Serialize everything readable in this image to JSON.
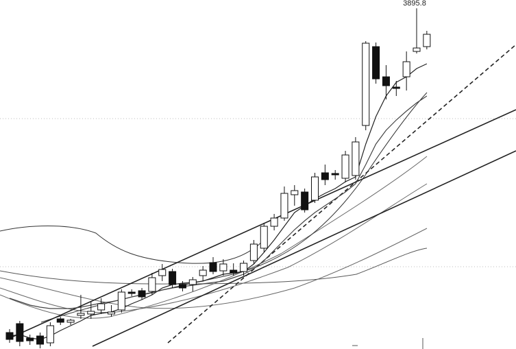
{
  "chart_data": {
    "type": "candlestick",
    "open": [
      2477,
      2516,
      2453,
      2462,
      2432,
      2537,
      2522,
      2552,
      2558,
      2576,
      2558,
      2576,
      2654,
      2660,
      2657,
      2726,
      2744,
      2687,
      2687,
      2726,
      2783,
      2747,
      2750,
      2744,
      2792,
      2846,
      2942,
      2978,
      3080,
      3092,
      3056,
      3176,
      3173,
      3152,
      3164,
      3383,
      3728,
      3596,
      3551,
      3596,
      3707,
      3728
    ],
    "high": [
      2492,
      2528,
      2468,
      2477,
      2522,
      2546,
      2537,
      2642,
      2612,
      2627,
      2597,
      2666,
      2666,
      2672,
      2738,
      2777,
      2756,
      2702,
      2720,
      2768,
      2807,
      2798,
      2780,
      2792,
      2882,
      2957,
      2996,
      3116,
      3122,
      3107,
      3176,
      3212,
      3188,
      3272,
      3332,
      3752,
      3746,
      3647,
      3578,
      3707,
      3895.8,
      3797
    ],
    "low": [
      2432,
      2417,
      2423,
      2408,
      2417,
      2510,
      2510,
      2537,
      2537,
      2558,
      2546,
      2564,
      2636,
      2621,
      2642,
      2702,
      2672,
      2657,
      2657,
      2702,
      2732,
      2726,
      2726,
      2726,
      2777,
      2828,
      2924,
      2966,
      3032,
      3002,
      3044,
      3122,
      3146,
      3134,
      3146,
      3362,
      3566,
      3497,
      3512,
      3536,
      3698,
      3716
    ],
    "close": [
      2447,
      2438,
      2441,
      2426,
      2507,
      2522,
      2531,
      2561,
      2570,
      2603,
      2567,
      2654,
      2648,
      2633,
      2717,
      2753,
      2687,
      2672,
      2708,
      2750,
      2744,
      2777,
      2738,
      2780,
      2864,
      2942,
      2978,
      3086,
      3098,
      3014,
      3158,
      3146,
      3167,
      3254,
      3311,
      3743,
      3587,
      3557,
      3545,
      3662,
      3722,
      3782
    ],
    "up_color": "#ffffff",
    "down_color": "#111111",
    "series": [
      {
        "color": "#222222",
        "values": [
          2462,
          2468,
          2453,
          2447,
          2462,
          2486,
          2507,
          2528,
          2552,
          2561,
          2567,
          2582,
          2603,
          2621,
          2642,
          2672,
          2687,
          2693,
          2696,
          2702,
          2717,
          2732,
          2738,
          2744,
          2777,
          2828,
          2882,
          2942,
          3002,
          3032,
          3062,
          3086,
          3107,
          3137,
          3158,
          3302,
          3422,
          3512,
          3572,
          3596,
          3632,
          3653
        ]
      },
      {
        "color": "#444444",
        "values": [
          2627,
          2612,
          2597,
          2588,
          2582,
          2582,
          2582,
          2588,
          2597,
          2606,
          2612,
          2621,
          2633,
          2642,
          2651,
          2663,
          2672,
          2678,
          2684,
          2690,
          2696,
          2702,
          2717,
          2732,
          2756,
          2792,
          2837,
          2882,
          2927,
          2966,
          3002,
          3032,
          3062,
          3092,
          3128,
          3212,
          3302,
          3362,
          3407,
          3446,
          3482,
          3512
        ]
      }
    ],
    "ylim": [
      2405,
      3932
    ]
  }
}
